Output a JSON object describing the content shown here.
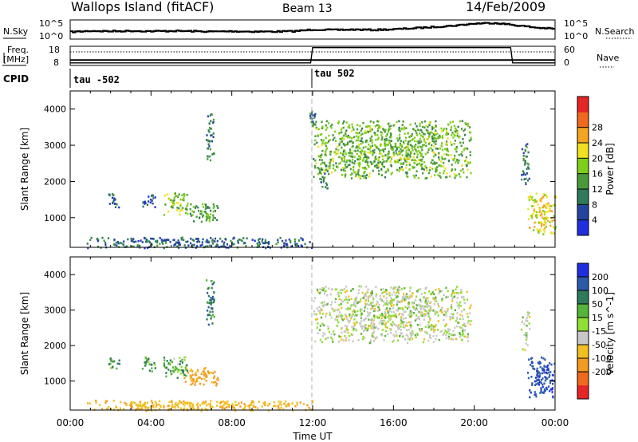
{
  "header": {
    "station": "Wallops Island (fitACF)",
    "beam": "Beam 13",
    "date": "14/Feb/2009"
  },
  "panel_labels": {
    "nsky": "N.Sky",
    "nsearch": "N.Search",
    "freq_line1": "Freq.",
    "freq_line2": "[MHz]",
    "nave": "Nave",
    "cpid": "CPID"
  },
  "noise_axis": {
    "left_top": "10^5",
    "left_bottom": "10^0",
    "right_top": "10^5",
    "right_bottom": "10^0"
  },
  "freq_axis": {
    "left_top": "18",
    "left_bottom": "8",
    "right_top": "60",
    "right_bottom": "0"
  },
  "cpid": [
    {
      "label": "tau -502",
      "start": "00:00"
    },
    {
      "label": "tau 502",
      "start": "12:00"
    }
  ],
  "x_axis": {
    "label": "Time UT",
    "ticks": [
      "00:00",
      "04:00",
      "08:00",
      "12:00",
      "16:00",
      "20:00",
      "00:00"
    ]
  },
  "range_axis": {
    "label": "Slant Range [km]",
    "ticks": [
      "1000",
      "2000",
      "3000",
      "4000"
    ]
  },
  "power_bar": {
    "label": "Power [dB]",
    "ticks": [
      "4",
      "8",
      "12",
      "16",
      "20",
      "24",
      "28"
    ],
    "colors": [
      "#1f2fe0",
      "#25449f",
      "#2f7a5a",
      "#4a9a3c",
      "#7fcf1a",
      "#f0e020",
      "#f3a523",
      "#ef6a1e",
      "#e42626"
    ]
  },
  "velocity_bar": {
    "label": "Velocity [m s^-1]",
    "ticks": [
      "200",
      "100",
      "50",
      "15",
      "-15",
      "-50",
      "-100",
      "-200"
    ],
    "colors": [
      "#1f2fe0",
      "#2b5aa8",
      "#2f7a5a",
      "#56b43a",
      "#8fe033",
      "#c8c8c8",
      "#f0c020",
      "#f39a20",
      "#ef6a1e",
      "#e42626"
    ]
  },
  "chart_data": {
    "type": "heatmap",
    "x_range_hours": [
      0,
      24
    ],
    "y_range_km": [
      180,
      4500
    ],
    "mode_change_time": "12:00",
    "noise_sky_log10": [
      [
        0,
        1.9
      ],
      [
        1,
        2.2
      ],
      [
        2,
        2.1
      ],
      [
        3,
        2.2
      ],
      [
        4,
        2.1
      ],
      [
        5,
        2.2
      ],
      [
        6,
        2.1
      ],
      [
        7,
        2.0
      ],
      [
        8,
        2.1
      ],
      [
        9,
        2.0
      ],
      [
        10,
        2.0
      ],
      [
        11,
        2.1
      ],
      [
        12,
        2.6
      ],
      [
        13,
        2.5
      ],
      [
        14,
        2.6
      ],
      [
        15,
        2.5
      ],
      [
        16,
        2.7
      ],
      [
        17,
        3.0
      ],
      [
        18,
        3.4
      ],
      [
        19,
        3.8
      ],
      [
        20,
        4.4
      ],
      [
        21,
        4.6
      ],
      [
        22,
        3.9
      ],
      [
        23,
        3.2
      ],
      [
        24,
        2.8
      ]
    ],
    "frequency_mhz": [
      [
        0,
        10.6
      ],
      [
        12,
        10.6
      ],
      [
        21.8,
        10.6
      ],
      [
        24,
        10.6
      ]
    ],
    "nave": [
      [
        0,
        6
      ],
      [
        11.9,
        6
      ],
      [
        12.0,
        58
      ],
      [
        21.8,
        58
      ],
      [
        21.9,
        6
      ],
      [
        24,
        6
      ]
    ],
    "power_db_regions": [
      {
        "t": [
          1.8,
          2.4
        ],
        "r": [
          1300,
          1700
        ],
        "db": 8
      },
      {
        "t": [
          3.5,
          4.2
        ],
        "r": [
          1300,
          1700
        ],
        "db": 6
      },
      {
        "t": [
          4.6,
          5.8
        ],
        "r": [
          1100,
          1700
        ],
        "db": 18
      },
      {
        "t": [
          5.6,
          7.3
        ],
        "r": [
          900,
          1400
        ],
        "db": 14
      },
      {
        "t": [
          6.7,
          7.1
        ],
        "r": [
          2600,
          3900
        ],
        "db": 10
      },
      {
        "t": [
          11.8,
          12.1
        ],
        "r": [
          3500,
          4000
        ],
        "db": 10
      },
      {
        "t": [
          12.0,
          19.8
        ],
        "r": [
          2100,
          3700
        ],
        "db": 16
      },
      {
        "t": [
          12.3,
          12.7
        ],
        "r": [
          1800,
          2600
        ],
        "db": 12
      },
      {
        "t": [
          22.3,
          22.7
        ],
        "r": [
          1900,
          3100
        ],
        "db": 10
      },
      {
        "t": [
          22.6,
          24.0
        ],
        "r": [
          550,
          1700
        ],
        "db": 22
      },
      {
        "t": [
          0.8,
          12.0
        ],
        "r": [
          180,
          480
        ],
        "db": 8
      }
    ],
    "velocity_regions": [
      {
        "t": [
          1.8,
          2.4
        ],
        "r": [
          1300,
          1700
        ],
        "v": 30
      },
      {
        "t": [
          3.5,
          4.2
        ],
        "r": [
          1300,
          1700
        ],
        "v": 30
      },
      {
        "t": [
          4.6,
          5.8
        ],
        "r": [
          1100,
          1700
        ],
        "v": 20
      },
      {
        "t": [
          5.6,
          7.3
        ],
        "r": [
          900,
          1400
        ],
        "v": -60
      },
      {
        "t": [
          6.7,
          7.1
        ],
        "r": [
          2600,
          3900
        ],
        "v": 40
      },
      {
        "t": [
          12.0,
          19.8
        ],
        "r": [
          2100,
          3700
        ],
        "v": 0
      },
      {
        "t": [
          22.3,
          22.7
        ],
        "r": [
          1900,
          3100
        ],
        "v": 0
      },
      {
        "t": [
          22.6,
          24.0
        ],
        "r": [
          550,
          1700
        ],
        "v": 90
      },
      {
        "t": [
          0.8,
          12.0
        ],
        "r": [
          180,
          480
        ],
        "v": -40
      }
    ]
  }
}
